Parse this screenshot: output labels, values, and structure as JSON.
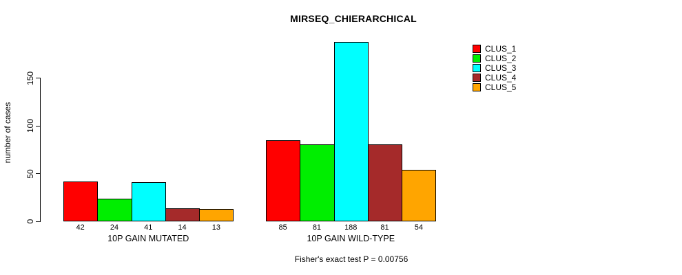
{
  "chart_data": {
    "type": "bar",
    "title": "MIRSEQ_CHIERARCHICAL",
    "ylabel": "number of cases",
    "xlabel": "",
    "annotation": "Fisher's exact test P = 0.00756",
    "yticks": [
      0,
      50,
      100,
      150
    ],
    "ylim": [
      0,
      190
    ],
    "grid": false,
    "legend_position": "top-right",
    "categories": [
      "10P GAIN MUTATED",
      "10P GAIN WILD-TYPE"
    ],
    "series": [
      {
        "name": "CLUS_1",
        "color": "#FF0000",
        "values": [
          42,
          85
        ]
      },
      {
        "name": "CLUS_2",
        "color": "#00EE00",
        "values": [
          24,
          81
        ]
      },
      {
        "name": "CLUS_3",
        "color": "#00FFFF",
        "values": [
          41,
          188
        ]
      },
      {
        "name": "CLUS_4",
        "color": "#A52A2A",
        "values": [
          14,
          81
        ]
      },
      {
        "name": "CLUS_5",
        "color": "#FFA500",
        "values": [
          13,
          54
        ]
      }
    ]
  }
}
